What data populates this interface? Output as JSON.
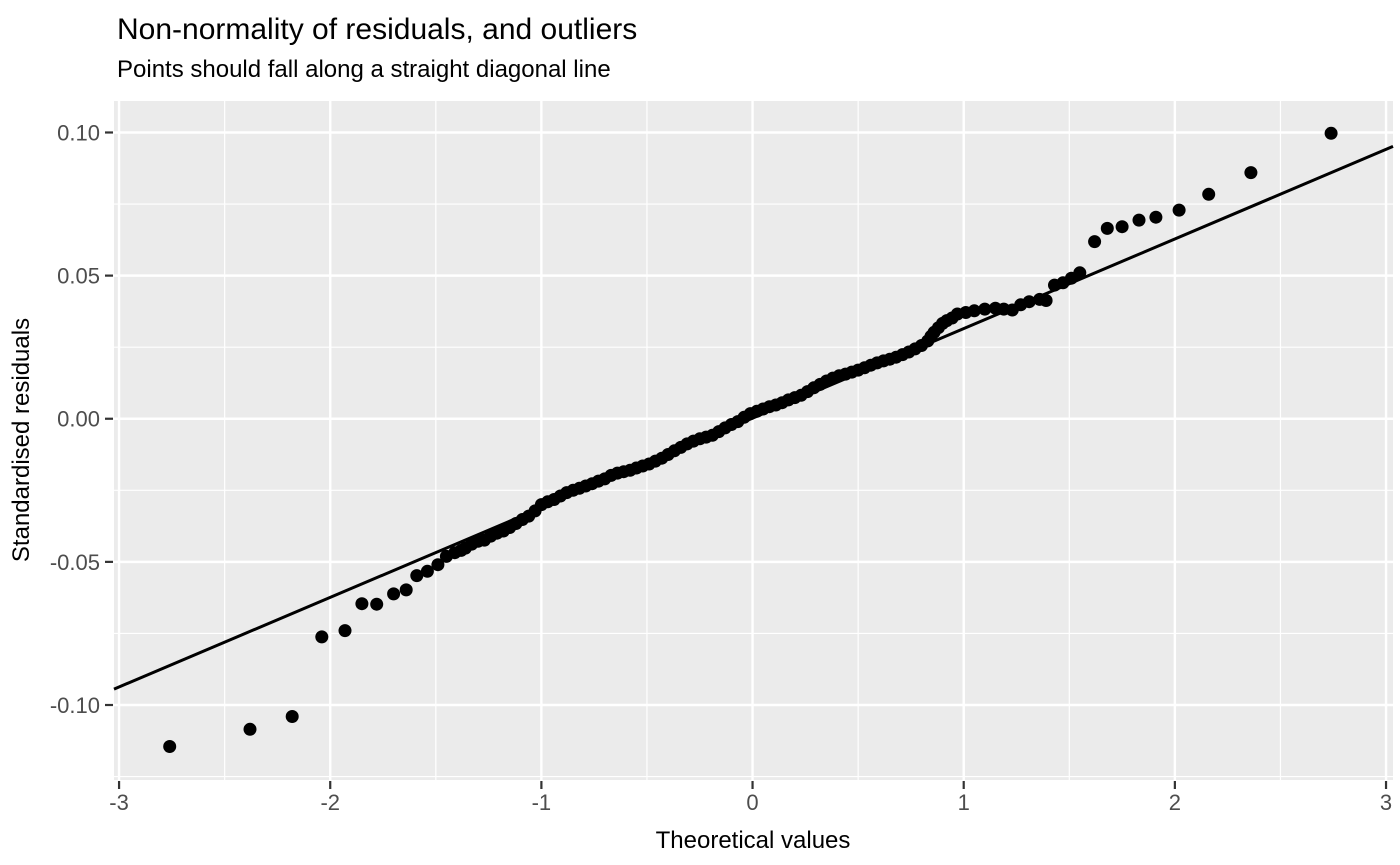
{
  "chart_data": {
    "type": "scatter",
    "title": "Non-normality of residuals, and outliers",
    "subtitle": "Points should fall along a straight diagonal line",
    "xlabel": "Theoretical values",
    "ylabel": "Standardised residuals",
    "xlim": [
      -3.024,
      3.033
    ],
    "ylim": [
      -0.1262,
      0.111
    ],
    "x_ticks": [
      -3,
      -2,
      -1,
      0,
      1,
      2,
      3
    ],
    "x_tick_labels": [
      "-3",
      "-2",
      "-1",
      "0",
      "1",
      "2",
      "3"
    ],
    "x_minor_ticks": [
      -2.5,
      -1.5,
      -0.5,
      0.5,
      1.5,
      2.5
    ],
    "y_ticks": [
      0.1,
      0.05,
      0.0,
      -0.05,
      -0.1
    ],
    "y_tick_labels": [
      "0.10",
      "0.05",
      "0.00",
      "-0.05",
      "-0.10"
    ],
    "y_minor_ticks": [
      0.075,
      0.025,
      -0.025,
      -0.075,
      -0.125
    ],
    "grid": true,
    "legend": "none",
    "colors": {
      "panel_background": "#ebebeb",
      "grid_line": "#ffffff",
      "point": "#000000",
      "reference_line": "#000000",
      "tick_mark": "#333333",
      "tick_text": "#4d4d4d",
      "title_text": "#000000"
    },
    "reference_line": {
      "slope": 0.0313,
      "intercept": 0.0002
    },
    "points": [
      [
        -2.76,
        -0.1145
      ],
      [
        -2.38,
        -0.1085
      ],
      [
        -2.18,
        -0.104
      ],
      [
        -2.04,
        -0.0762
      ],
      [
        -1.93,
        -0.074
      ],
      [
        -1.85,
        -0.0646
      ],
      [
        -1.78,
        -0.0648
      ],
      [
        -1.7,
        -0.0612
      ],
      [
        -1.64,
        -0.0598
      ],
      [
        -1.59,
        -0.0548
      ],
      [
        -1.54,
        -0.0533
      ],
      [
        -1.49,
        -0.051
      ],
      [
        -1.45,
        -0.0481
      ],
      [
        -1.41,
        -0.0468
      ],
      [
        -1.38,
        -0.046
      ],
      [
        -1.36,
        -0.0452
      ],
      [
        -1.33,
        -0.0438
      ],
      [
        -1.3,
        -0.0428
      ],
      [
        -1.27,
        -0.0424
      ],
      [
        -1.24,
        -0.041
      ],
      [
        -1.21,
        -0.04
      ],
      [
        -1.18,
        -0.0392
      ],
      [
        -1.15,
        -0.038
      ],
      [
        -1.12,
        -0.0366
      ],
      [
        -1.09,
        -0.0352
      ],
      [
        -1.06,
        -0.034
      ],
      [
        -1.03,
        -0.0322
      ],
      [
        -1.0,
        -0.03
      ],
      [
        -0.97,
        -0.029
      ],
      [
        -0.94,
        -0.0282
      ],
      [
        -0.91,
        -0.027
      ],
      [
        -0.88,
        -0.0258
      ],
      [
        -0.85,
        -0.025
      ],
      [
        -0.82,
        -0.0243
      ],
      [
        -0.79,
        -0.0235
      ],
      [
        -0.76,
        -0.0227
      ],
      [
        -0.73,
        -0.0218
      ],
      [
        -0.7,
        -0.021
      ],
      [
        -0.67,
        -0.0198
      ],
      [
        -0.64,
        -0.019
      ],
      [
        -0.61,
        -0.0185
      ],
      [
        -0.58,
        -0.018
      ],
      [
        -0.55,
        -0.0172
      ],
      [
        -0.52,
        -0.0165
      ],
      [
        -0.49,
        -0.0158
      ],
      [
        -0.46,
        -0.0148
      ],
      [
        -0.43,
        -0.0138
      ],
      [
        -0.4,
        -0.0125
      ],
      [
        -0.37,
        -0.0112
      ],
      [
        -0.34,
        -0.01
      ],
      [
        -0.31,
        -0.0088
      ],
      [
        -0.28,
        -0.0078
      ],
      [
        -0.25,
        -0.007
      ],
      [
        -0.22,
        -0.0064
      ],
      [
        -0.19,
        -0.0058
      ],
      [
        -0.16,
        -0.0045
      ],
      [
        -0.13,
        -0.0032
      ],
      [
        -0.1,
        -0.002
      ],
      [
        -0.07,
        -0.001
      ],
      [
        -0.04,
        0.0005
      ],
      [
        -0.01,
        0.0018
      ],
      [
        0.02,
        0.0026
      ],
      [
        0.05,
        0.0034
      ],
      [
        0.08,
        0.0042
      ],
      [
        0.11,
        0.0048
      ],
      [
        0.14,
        0.0056
      ],
      [
        0.17,
        0.0066
      ],
      [
        0.2,
        0.0074
      ],
      [
        0.23,
        0.0082
      ],
      [
        0.26,
        0.0095
      ],
      [
        0.29,
        0.0108
      ],
      [
        0.32,
        0.012
      ],
      [
        0.35,
        0.0132
      ],
      [
        0.38,
        0.0142
      ],
      [
        0.41,
        0.015
      ],
      [
        0.44,
        0.0156
      ],
      [
        0.47,
        0.0163
      ],
      [
        0.5,
        0.017
      ],
      [
        0.53,
        0.0178
      ],
      [
        0.56,
        0.0187
      ],
      [
        0.59,
        0.0195
      ],
      [
        0.62,
        0.0202
      ],
      [
        0.65,
        0.0208
      ],
      [
        0.68,
        0.0215
      ],
      [
        0.71,
        0.0224
      ],
      [
        0.74,
        0.0233
      ],
      [
        0.77,
        0.0244
      ],
      [
        0.8,
        0.0256
      ],
      [
        0.83,
        0.0272
      ],
      [
        0.845,
        0.0288
      ],
      [
        0.86,
        0.0302
      ],
      [
        0.88,
        0.0318
      ],
      [
        0.9,
        0.0333
      ],
      [
        0.92,
        0.0343
      ],
      [
        0.945,
        0.0352
      ],
      [
        0.97,
        0.0366
      ],
      [
        1.01,
        0.0371
      ],
      [
        1.05,
        0.0377
      ],
      [
        1.1,
        0.0383
      ],
      [
        1.15,
        0.0386
      ],
      [
        1.19,
        0.0383
      ],
      [
        1.23,
        0.038
      ],
      [
        1.27,
        0.0398
      ],
      [
        1.31,
        0.0409
      ],
      [
        1.36,
        0.0417
      ],
      [
        1.39,
        0.0413
      ],
      [
        1.43,
        0.0467
      ],
      [
        1.47,
        0.0475
      ],
      [
        1.51,
        0.0491
      ],
      [
        1.55,
        0.051
      ],
      [
        1.62,
        0.0619
      ],
      [
        1.68,
        0.0665
      ],
      [
        1.75,
        0.0671
      ],
      [
        1.83,
        0.0694
      ],
      [
        1.91,
        0.0704
      ],
      [
        2.02,
        0.0729
      ],
      [
        2.16,
        0.0784
      ],
      [
        2.36,
        0.086
      ],
      [
        2.74,
        0.0997
      ]
    ]
  }
}
